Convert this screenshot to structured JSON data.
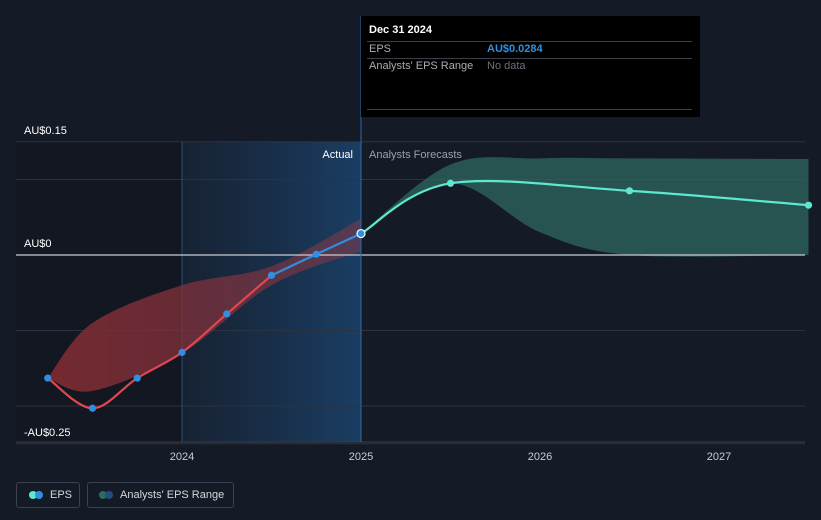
{
  "chart_data": {
    "type": "line",
    "title": "",
    "x_ticks": [
      "2024",
      "2025",
      "2026",
      "2027"
    ],
    "y_labels": [
      "AU$0.15",
      "AU$0",
      "-AU$0.25"
    ],
    "ylim": [
      -0.25,
      0.15
    ],
    "dividers": {
      "actual_label": "Actual",
      "forecast_label": "Analysts Forecasts"
    },
    "series": [
      {
        "name": "EPS actual",
        "color": "#2f8fe0",
        "x": [
          2023.25,
          2023.5,
          2023.75,
          2024.0,
          2024.25,
          2024.5,
          2024.75,
          2025.0
        ],
        "y": [
          -0.163,
          -0.203,
          -0.163,
          -0.129,
          -0.078,
          -0.027,
          0.001,
          0.0284
        ]
      },
      {
        "name": "EPS forecast",
        "color": "#5ee8cf",
        "x": [
          2025.0,
          2025.5,
          2026.5,
          2027.5
        ],
        "y": [
          0.0284,
          0.095,
          0.085,
          0.066
        ]
      }
    ],
    "range_actual": {
      "x": [
        2023.25,
        2023.5,
        2024.0,
        2024.5,
        2025.0
      ],
      "high": [
        -0.163,
        -0.09,
        -0.04,
        -0.015,
        0.048
      ],
      "low": [
        -0.163,
        -0.18,
        -0.13,
        -0.04,
        0.005
      ]
    },
    "range_forecast": {
      "x": [
        2025.0,
        2025.5,
        2026.0,
        2026.5,
        2027.5
      ],
      "high": [
        0.0284,
        0.12,
        0.128,
        0.128,
        0.127
      ],
      "low": [
        0.0284,
        0.095,
        0.03,
        0.0,
        0.0
      ]
    }
  },
  "tooltip": {
    "date": "Dec 31 2024",
    "eps_label": "EPS",
    "eps_value": "AU$0.0284",
    "range_label": "Analysts' EPS Range",
    "range_value": "No data"
  },
  "legend": {
    "eps": "EPS",
    "range": "Analysts' EPS Range"
  },
  "colors": {
    "eps": "#2f8fe0",
    "forecast": "#5ee8cf",
    "range_actual": "#8b2c33",
    "range_forecast": "#2f6b64",
    "tooltip_value": "#2f8fe0"
  }
}
